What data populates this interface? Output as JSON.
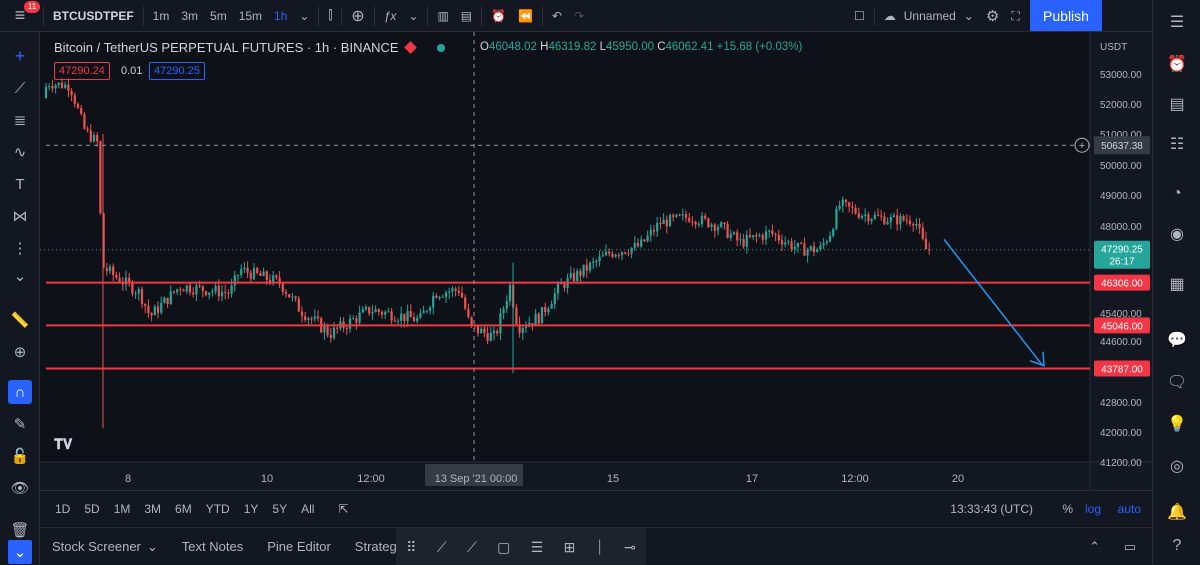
{
  "topbar": {
    "symbol": "BTCUSDTPEF",
    "intervals": [
      "1m",
      "3m",
      "5m",
      "15m",
      "1h"
    ],
    "active_interval": "1h",
    "layout_name": "Unnamed",
    "publish_label": "Publish",
    "notification_count": "11"
  },
  "legend": {
    "title": "Bitcoin / TetherUS PERPETUAL FUTURES · 1h · BINANCE",
    "open_label": "O",
    "open": "46048.02",
    "high_label": "H",
    "high": "46319.82",
    "low_label": "L",
    "low": "45950.00",
    "close_label": "C",
    "close": "46062.41",
    "change": "+15.68 (+0.03%)",
    "sell_price": "47290.24",
    "spread": "0.01",
    "buy_price": "47290.25"
  },
  "price_axis": {
    "currency": "USDT",
    "crosshair_price": "50637.38",
    "last_price": "47290.25",
    "countdown": "26:17",
    "levels": [
      "46306.00",
      "45046.00",
      "43787.00"
    ]
  },
  "chart_data": {
    "type": "candlestick",
    "y_ticks": [
      53000,
      52000,
      51000,
      50000,
      49000,
      48000,
      45400,
      44600,
      42800,
      42000,
      41200
    ],
    "x_ticks": [
      "8",
      "10",
      "12:00",
      "13 Sep '21  00:00",
      "15",
      "17",
      "12:00",
      "20"
    ],
    "ylim": [
      41200,
      53600
    ],
    "horizontal_lines": [
      46306,
      45046,
      43787
    ],
    "last_price": 47290.25,
    "crosshair": {
      "price": 50637.38,
      "time": "13 Sep '21  00:00"
    },
    "arrow": {
      "from": 47600,
      "to": 43900
    },
    "colors": {
      "up": "#26a69a",
      "down": "#ef5350",
      "level_line": "#f23645",
      "arrow": "#2196f3"
    }
  },
  "bottombar": {
    "ranges": [
      "1D",
      "5D",
      "1M",
      "3M",
      "6M",
      "YTD",
      "1Y",
      "5Y",
      "All"
    ],
    "time": "13:33:43 (UTC)",
    "percent": "%",
    "log": "log",
    "auto": "auto"
  },
  "footer": {
    "tabs": [
      "Stock Screener",
      "Text Notes",
      "Pine Editor",
      "Strategy"
    ]
  }
}
